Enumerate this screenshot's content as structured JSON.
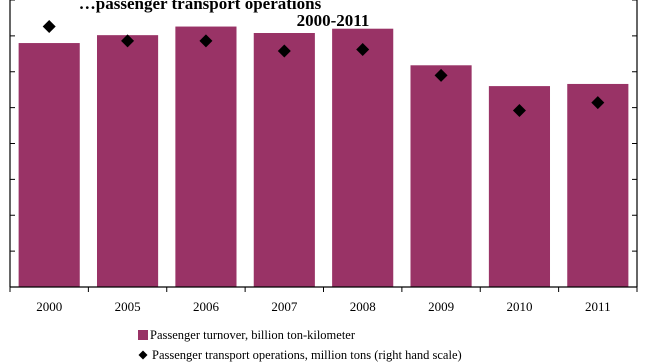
{
  "chart_data": {
    "type": "bar",
    "title": "2000-2011",
    "title_partial": "…passenger transport operations",
    "categories": [
      "2000",
      "2005",
      "2006",
      "2007",
      "2008",
      "2009",
      "2010",
      "2011"
    ],
    "series": [
      {
        "name": "Passenger turnover, billion ton-kilometer",
        "type": "bar",
        "axis": "left",
        "color": "#993366",
        "values": [
          3.4,
          3.51,
          3.63,
          3.54,
          3.6,
          3.09,
          2.8,
          2.83
        ]
      },
      {
        "name": "Passenger transport operations, million tons (right hand scale)",
        "type": "scatter",
        "axis": "right",
        "marker": "diamond",
        "color": "#000000",
        "values": [
          3.63,
          3.43,
          3.43,
          3.29,
          3.31,
          2.95,
          2.46,
          2.57
        ]
      }
    ],
    "ylim": [
      0,
      4
    ],
    "y2lim": [
      0,
      4
    ],
    "legend_position": "bottom",
    "grid": false
  }
}
